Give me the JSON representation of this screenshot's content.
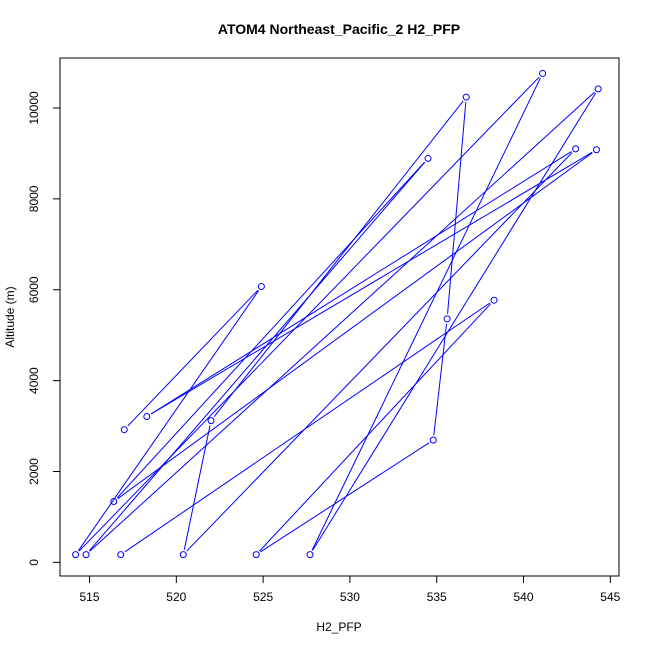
{
  "chart_data": {
    "type": "line",
    "title": "ATOM4 Northeast_Pacific_2 H2_PFP",
    "xlabel": "H2_PFP",
    "ylabel": "Altitude (m)",
    "xlim": [
      513.3,
      545.5
    ],
    "ylim": [
      -300,
      11100
    ],
    "xticks": [
      515,
      520,
      525,
      530,
      535,
      540,
      545
    ],
    "yticks": [
      0,
      2000,
      4000,
      6000,
      8000,
      10000
    ],
    "grid": false,
    "legend": "none",
    "colors": {
      "series": "#0000ff",
      "axes": "#000000"
    },
    "series": [
      {
        "values": [
          {
            "x": 517.0,
            "y": 2920
          },
          {
            "x": 524.9,
            "y": 6070
          },
          {
            "x": 514.2,
            "y": 170
          },
          {
            "x": 541.1,
            "y": 10760
          },
          {
            "x": 527.7,
            "y": 170
          },
          {
            "x": 544.3,
            "y": 10420
          },
          {
            "x": 514.8,
            "y": 170
          },
          {
            "x": 534.5,
            "y": 8890
          },
          {
            "x": 516.4,
            "y": 1340
          },
          {
            "x": 544.2,
            "y": 9080
          },
          {
            "x": 518.3,
            "y": 3210
          },
          {
            "x": 543.0,
            "y": 9100
          },
          {
            "x": 520.4,
            "y": 170
          },
          {
            "x": 522.0,
            "y": 3120
          },
          {
            "x": 536.7,
            "y": 10240
          },
          {
            "x": 535.6,
            "y": 5360
          },
          {
            "x": 534.8,
            "y": 2690
          },
          {
            "x": 524.6,
            "y": 170
          },
          {
            "x": 538.3,
            "y": 5770
          },
          {
            "x": 516.8,
            "y": 170
          }
        ]
      }
    ]
  }
}
